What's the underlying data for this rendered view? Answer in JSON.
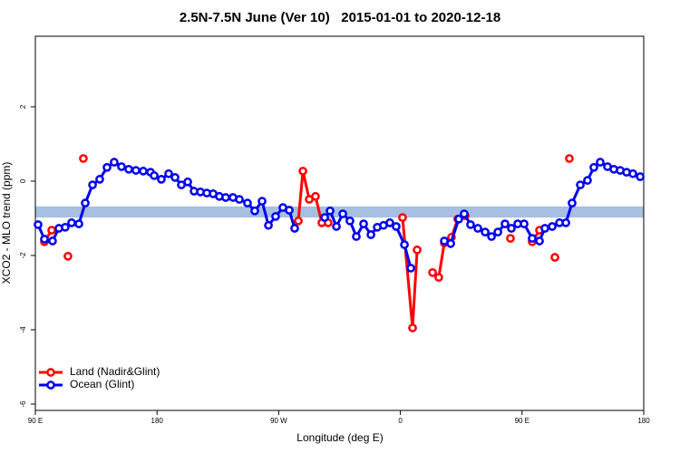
{
  "chart_data": {
    "type": "line",
    "title": "2.5N-7.5N June (Ver 10)   2015-01-01 to 2020-12-18",
    "xlabel": "Longitude (deg E)",
    "ylabel": "XCO2 - MLO trend (ppm)",
    "xlim": [
      90,
      540
    ],
    "xticks": [
      {
        "value": 90,
        "label": "90 E"
      },
      {
        "value": 180,
        "label": "180"
      },
      {
        "value": 270,
        "label": "90 W"
      },
      {
        "value": 360,
        "label": "0"
      },
      {
        "value": 450,
        "label": "90 E"
      },
      {
        "value": 540,
        "label": "180"
      }
    ],
    "ylim": [
      -6.17,
      3.9
    ],
    "yticks": [
      -6,
      -4,
      -2,
      0,
      2
    ],
    "band": [
      -0.98,
      -0.68
    ],
    "band_color": "#a7bfe0",
    "legend": "bottomleft",
    "series": [
      {
        "name": "Land (Nadir&Glint)",
        "color": "#ff0000",
        "x": [
          96.7,
          102.1,
          null,
          114.1,
          null,
          125.5,
          null,
          284.5,
          287.9,
          292.6,
          297.2,
          301.9,
          306.6,
          null,
          361.6,
          369.0,
          372.4,
          null,
          383.8,
          388.4,
          392.5,
          397.8,
          402.5,
          407.9,
          null,
          441.4,
          null,
          457.5,
          462.9,
          null,
          474.3,
          null,
          485.0
        ],
        "values": [
          -1.63,
          -1.32,
          null,
          -2.02,
          null,
          0.61,
          null,
          -1.07,
          0.27,
          -0.49,
          -0.41,
          -1.12,
          -1.12,
          null,
          -0.98,
          -3.95,
          -1.85,
          null,
          -2.46,
          -2.59,
          -1.66,
          -1.51,
          -1.02,
          -0.93,
          null,
          -1.54,
          null,
          -1.63,
          -1.32,
          null,
          -2.05,
          null,
          0.61
        ]
      },
      {
        "name": "Ocean (Glint)",
        "color": "#0000ee",
        "x": [
          92.0,
          96.7,
          102.7,
          107.4,
          112.1,
          116.8,
          122.2,
          126.9,
          132.3,
          137.6,
          143.0,
          148.3,
          153.7,
          159.1,
          164.4,
          169.8,
          175.2,
          177.9,
          183.2,
          188.6,
          193.3,
          198.0,
          202.7,
          207.4,
          212.1,
          216.8,
          221.5,
          226.1,
          230.8,
          236.2,
          240.9,
          246.9,
          252.3,
          257.7,
          262.4,
          267.7,
          273.1,
          277.8,
          281.8,
          null,
          304.0,
          308.0,
          312.7,
          317.4,
          322.7,
          327.4,
          332.8,
          338.2,
          342.9,
          347.5,
          352.2,
          356.9,
          363.0,
          367.7,
          null,
          392.5,
          397.2,
          403.2,
          407.2,
          411.9,
          417.3,
          422.7,
          427.4,
          432.1,
          437.4,
          442.1,
          446.8,
          451.5,
          457.5,
          462.9,
          466.9,
          472.3,
          477.7,
          482.4,
          487.0,
          493.1,
          498.4,
          503.1,
          507.8,
          513.2,
          517.9,
          522.6,
          527.3,
          532.0,
          537.4
        ],
        "values": [
          -1.17,
          -1.56,
          -1.61,
          -1.27,
          -1.24,
          -1.12,
          -1.15,
          -0.59,
          -0.1,
          0.05,
          0.37,
          0.51,
          0.39,
          0.32,
          0.29,
          0.27,
          0.24,
          0.15,
          0.05,
          0.2,
          0.1,
          -0.1,
          -0.02,
          -0.27,
          -0.29,
          -0.32,
          -0.34,
          -0.41,
          -0.44,
          -0.44,
          -0.49,
          -0.59,
          -0.8,
          -0.54,
          -1.19,
          -0.95,
          -0.71,
          -0.78,
          -1.27,
          null,
          -0.98,
          -0.8,
          -1.22,
          -0.88,
          -1.07,
          -1.49,
          -1.15,
          -1.44,
          -1.24,
          -1.19,
          -1.12,
          -1.22,
          -1.71,
          -2.34,
          null,
          -1.61,
          -1.68,
          -1.02,
          -0.88,
          -1.17,
          -1.27,
          -1.37,
          -1.49,
          -1.37,
          -1.15,
          -1.27,
          -1.15,
          -1.15,
          -1.54,
          -1.61,
          -1.27,
          -1.22,
          -1.12,
          -1.12,
          -0.59,
          -0.1,
          0.02,
          0.37,
          0.51,
          0.39,
          0.32,
          0.29,
          0.24,
          0.2,
          0.12
        ]
      }
    ]
  }
}
